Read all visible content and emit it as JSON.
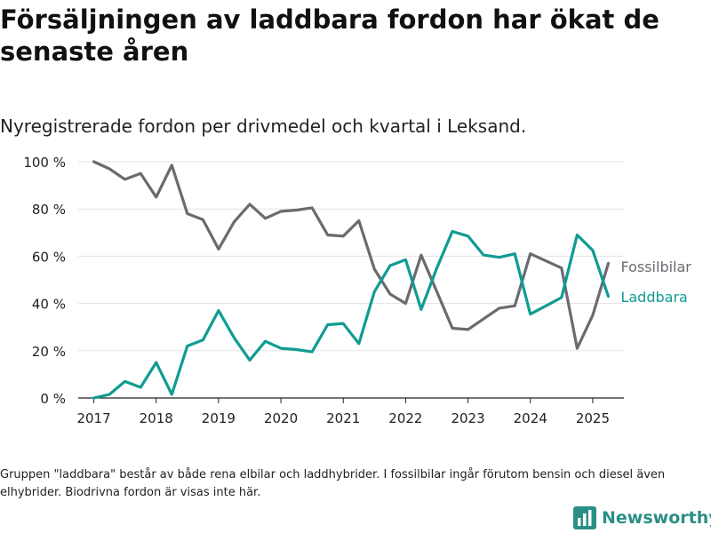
{
  "title": "Försäljningen av laddbara fordon har ökat de senaste åren",
  "subtitle": "Nyregistrerade fordon per drivmedel och kvartal i Leksand.",
  "footnote": "Gruppen \"laddbara\" består av både rena elbilar och laddhybrider. I fossilbilar ingår förutom bensin och diesel även elhybrider. Biodrivna fordon är visas inte här.",
  "brand": {
    "name": "Newsworthy",
    "icon": "bar-chart-logo-icon",
    "color": "#2a8f86"
  },
  "chart_data": {
    "type": "line",
    "xlim": [
      2016.75,
      2025.5
    ],
    "ylim": [
      0,
      100
    ],
    "x_ticks": [
      2017,
      2018,
      2019,
      2020,
      2021,
      2022,
      2023,
      2024,
      2025
    ],
    "y_ticks": [
      0,
      20,
      40,
      60,
      80,
      100
    ],
    "y_tick_labels": [
      "0 %",
      "20 %",
      "40 %",
      "60 %",
      "80 %",
      "100 %"
    ],
    "grid": "horizontal",
    "legend": "labels at line ends (right)",
    "x": [
      2017.0,
      2017.25,
      2017.5,
      2017.75,
      2018.0,
      2018.25,
      2018.5,
      2018.75,
      2019.0,
      2019.25,
      2019.5,
      2019.75,
      2020.0,
      2020.25,
      2020.5,
      2020.75,
      2021.0,
      2021.25,
      2021.5,
      2021.75,
      2022.0,
      2022.25,
      2022.5,
      2022.75,
      2023.0,
      2023.25,
      2023.5,
      2023.75,
      2024.0,
      2024.25,
      2024.5,
      2024.75,
      2025.0,
      2025.25
    ],
    "series": [
      {
        "name": "Fossilbilar",
        "color": "#6b6a70",
        "values": [
          100,
          97,
          92.5,
          95,
          85,
          98.5,
          78,
          75.5,
          63,
          74.5,
          82,
          76,
          79,
          79.5,
          80.5,
          69,
          68.5,
          75,
          54.5,
          44,
          40,
          60.5,
          45,
          29.5,
          29,
          33.5,
          38,
          39,
          61,
          58,
          55,
          21,
          35,
          57
        ]
      },
      {
        "name": "Laddbara",
        "color": "#0f9c92",
        "values": [
          0,
          1.5,
          7,
          4.5,
          15,
          1.5,
          22,
          24.5,
          37,
          25.5,
          16,
          24,
          21,
          20.5,
          19.5,
          31,
          31.5,
          23,
          45,
          56,
          58.5,
          37.5,
          55,
          70.5,
          68.5,
          60.5,
          59.5,
          61,
          35.5,
          39,
          42.5,
          69,
          62.5,
          43
        ]
      }
    ]
  }
}
